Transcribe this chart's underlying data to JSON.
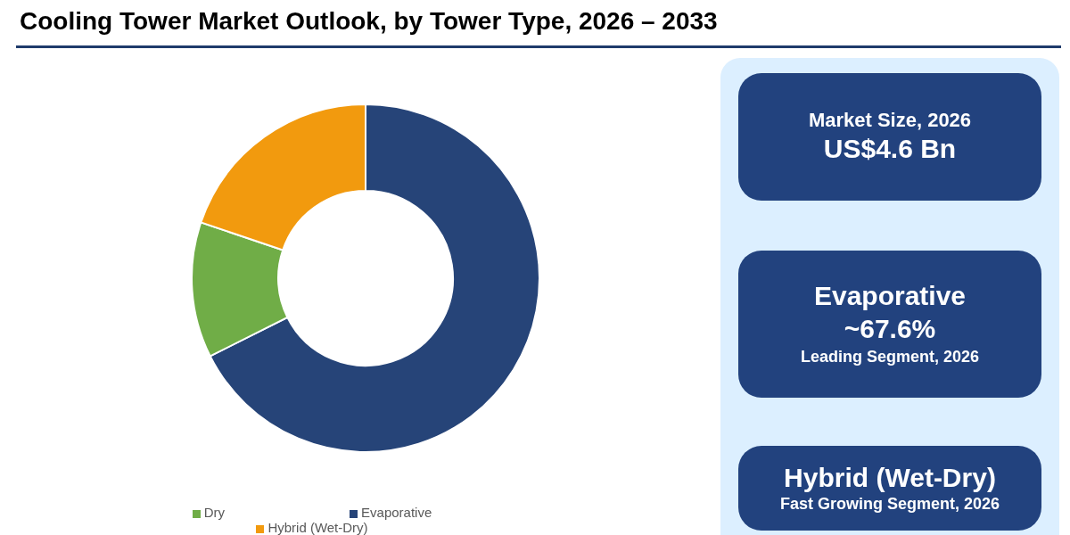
{
  "chart_data": [
    {
      "type": "donut",
      "title": "Cooling Tower Market Outlook, by Tower Type, 2026 – 2033",
      "categories": [
        "Evaporative",
        "Dry",
        "Hybrid (Wet-Dry)"
      ],
      "values": [
        67.6,
        12.6,
        19.8
      ],
      "colors": [
        "#264478",
        "#70ad47",
        "#f29a0e"
      ],
      "legend": "bottom"
    },
    {
      "type": "other",
      "title": "Market Size, 2026",
      "subtitle": "US$4.6 Bn"
    },
    {
      "type": "other",
      "title": "Evaporative",
      "subtitle": "~67.6%",
      "annotations": [
        "Leading Segment, 2026"
      ]
    },
    {
      "type": "other",
      "title": "Hybrid (Wet-Dry)",
      "subtitle": "Fast Growing Segment, 2026"
    }
  ]
}
